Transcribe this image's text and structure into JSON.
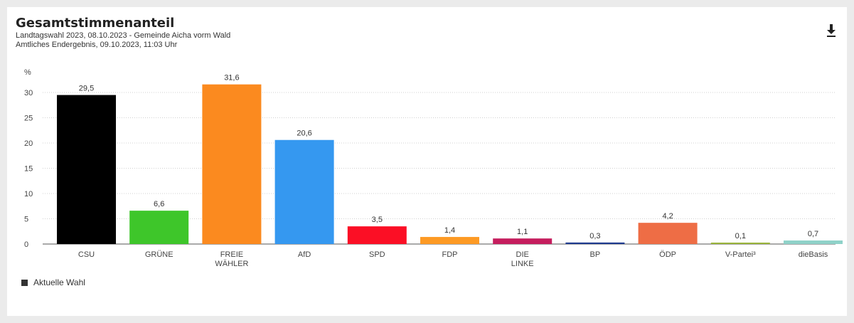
{
  "header": {
    "title": "Gesamtstimmenanteil",
    "subtitle_line1": "Landtagswahl 2023, 08.10.2023 - Gemeinde Aicha vorm Wald",
    "subtitle_line2": "Amtliches Endergebnis, 09.10.2023, 11:03 Uhr"
  },
  "download_icon": "download-icon",
  "legend": {
    "label": "Aktuelle Wahl"
  },
  "chart_data": {
    "type": "bar",
    "ylabel": "%",
    "yticks": [
      0,
      5,
      10,
      15,
      20,
      25,
      30
    ],
    "ylim": [
      0,
      35
    ],
    "grid": true,
    "legend_position": "bottom-left",
    "categories": [
      "CSU",
      "GRÜNE",
      "FREIE WÄHLER",
      "AfD",
      "SPD",
      "FDP",
      "DIE LINKE",
      "BP",
      "ÖDP",
      "V-Partei³",
      "dieBasis"
    ],
    "values": [
      29.5,
      6.6,
      31.6,
      20.6,
      3.5,
      1.4,
      1.1,
      0.3,
      4.2,
      0.1,
      0.7
    ],
    "value_labels": [
      "29,5",
      "6,6",
      "31,6",
      "20,6",
      "3,5",
      "1,4",
      "1,1",
      "0,3",
      "4,2",
      "0,1",
      "0,7"
    ],
    "colors": [
      "#000000",
      "#3ec62a",
      "#fb8a1f",
      "#3598f0",
      "#fb0f25",
      "#fd9a24",
      "#c51d5d",
      "#1f3b8f",
      "#ee6d45",
      "#9bb53b",
      "#8fd2c9"
    ]
  }
}
